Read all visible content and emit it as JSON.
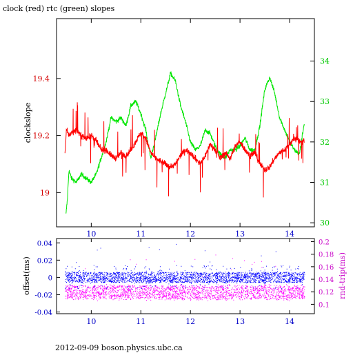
{
  "title": "clock (red) rtc (green) slopes",
  "footer": "2012-09-09  boson.physics.ubc.ca",
  "colors": {
    "clock": "#ff0000",
    "rtc": "#00e600",
    "offset": "#0000ff",
    "roundtrip": "#ff00ff"
  },
  "chart_data": [
    {
      "type": "line",
      "title": "clock (red) rtc (green) slopes",
      "xlabel": "",
      "ylabel": "clockslope",
      "xlim": [
        9.3,
        14.5
      ],
      "ylim": [
        18.88,
        19.61
      ],
      "y2lim": [
        29.9,
        35.05
      ],
      "x_ticks": [
        10,
        11,
        12,
        13,
        14
      ],
      "y_ticks": [
        19,
        19.2,
        19.4
      ],
      "y_tick_labels": [
        "19",
        "19.2",
        "19.4"
      ],
      "y2_ticks": [
        30,
        31,
        32,
        33,
        34
      ],
      "y2_tick_labels": [
        "30",
        "31",
        "32",
        "33",
        "34"
      ],
      "series": [
        {
          "name": "clock",
          "axis": "left",
          "x": [
            9.47,
            9.5,
            9.55,
            9.6,
            9.7,
            9.8,
            9.9,
            10.0,
            10.1,
            10.2,
            10.3,
            10.4,
            10.5,
            10.6,
            10.7,
            10.8,
            10.9,
            11.0,
            11.1,
            11.2,
            11.3,
            11.4,
            11.5,
            11.6,
            11.7,
            11.8,
            11.9,
            12.0,
            12.1,
            12.2,
            12.3,
            12.4,
            12.5,
            12.6,
            12.7,
            12.8,
            12.9,
            13.0,
            13.1,
            13.2,
            13.3,
            13.4,
            13.5,
            13.6,
            13.7,
            13.8,
            13.9,
            14.0,
            14.1,
            14.2,
            14.3
          ],
          "y": [
            19.14,
            19.22,
            19.2,
            19.21,
            19.22,
            19.2,
            19.19,
            19.2,
            19.18,
            19.15,
            19.15,
            19.13,
            19.12,
            19.14,
            19.13,
            19.15,
            19.18,
            19.21,
            19.19,
            19.14,
            19.12,
            19.11,
            19.1,
            19.09,
            19.1,
            19.13,
            19.15,
            19.14,
            19.12,
            19.1,
            19.13,
            19.17,
            19.15,
            19.12,
            19.14,
            19.12,
            19.16,
            19.18,
            19.15,
            19.13,
            19.14,
            19.1,
            19.08,
            19.09,
            19.12,
            19.14,
            19.15,
            19.17,
            19.19,
            19.18,
            19.18
          ]
        },
        {
          "name": "rtc",
          "axis": "right",
          "x": [
            9.49,
            9.52,
            9.55,
            9.6,
            9.7,
            9.8,
            9.9,
            10.0,
            10.1,
            10.2,
            10.3,
            10.4,
            10.5,
            10.6,
            10.7,
            10.8,
            10.9,
            11.0,
            11.1,
            11.2,
            11.3,
            11.4,
            11.5,
            11.6,
            11.7,
            11.8,
            11.9,
            12.0,
            12.1,
            12.2,
            12.3,
            12.4,
            12.5,
            12.6,
            12.7,
            12.8,
            12.9,
            13.0,
            13.1,
            13.2,
            13.3,
            13.4,
            13.5,
            13.6,
            13.7,
            13.8,
            13.9,
            14.0,
            14.1,
            14.2,
            14.25,
            14.3
          ],
          "y": [
            30.2,
            30.6,
            31.3,
            31.1,
            31.0,
            31.2,
            31.1,
            31.0,
            31.2,
            31.6,
            32.0,
            32.6,
            32.5,
            32.6,
            32.4,
            32.9,
            33.0,
            32.7,
            32.3,
            31.6,
            32.1,
            32.7,
            33.2,
            33.7,
            33.5,
            32.9,
            32.5,
            32.0,
            31.8,
            31.9,
            32.3,
            32.2,
            31.9,
            31.7,
            31.6,
            31.8,
            31.8,
            31.9,
            32.1,
            31.8,
            31.8,
            32.4,
            33.3,
            33.6,
            33.2,
            32.6,
            32.3,
            32.0,
            31.8,
            31.7,
            32.1,
            32.5
          ]
        }
      ]
    },
    {
      "type": "scatter",
      "xlabel": "",
      "ylabel": "offset(ms)",
      "y2label": "rnd-trip(ms)",
      "xlim": [
        9.3,
        14.5
      ],
      "ylim": [
        -0.042,
        0.045
      ],
      "y2lim": [
        0.085,
        0.205
      ],
      "x_ticks": [
        10,
        11,
        12,
        13,
        14
      ],
      "y_ticks": [
        -0.04,
        -0.02,
        0,
        0.02,
        0.04
      ],
      "y_tick_labels": [
        "-0.04",
        "-0.02",
        "0",
        "0.02",
        "0.04"
      ],
      "y2_ticks": [
        0.1,
        0.12,
        0.14,
        0.16,
        0.18,
        0.2
      ],
      "y2_tick_labels": [
        "0.1",
        "0.12",
        "0.14",
        "0.16",
        "0.18",
        "0.2"
      ],
      "series": [
        {
          "name": "offset",
          "axis": "left",
          "x_range": [
            9.47,
            14.3
          ],
          "band": [
            -0.006,
            0.006
          ],
          "outlier_max": 0.042
        },
        {
          "name": "rnd-trip",
          "axis": "right",
          "x_range": [
            9.47,
            14.3
          ],
          "band": [
            0.108,
            0.13
          ],
          "outlier_max": 0.18
        }
      ]
    }
  ]
}
